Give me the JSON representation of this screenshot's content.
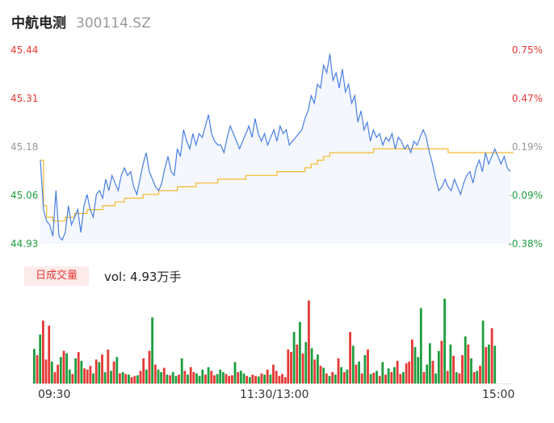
{
  "header": {
    "stock_name": "中航电测",
    "stock_code": "300114.SZ"
  },
  "volume_panel": {
    "tab_label": "日成交量",
    "vol_text": "vol: 4.93万手"
  },
  "colors": {
    "up": "#e53935",
    "down": "#1e9e3e",
    "neutral": "#999999",
    "price_line": "#4a7fe0",
    "price_fill": "#f4f7fd",
    "avg_line": "#f5b82e"
  },
  "chart_data": {
    "type": "line",
    "title": "",
    "xlabel": "",
    "ylabel": "",
    "x_ticks": [
      "09:30",
      "11:30/13:00",
      "15:00"
    ],
    "price_axis": {
      "ylim": [
        44.93,
        45.44
      ],
      "ticks": [
        "45.44",
        "45.31",
        "45.18",
        "45.06",
        "44.93"
      ]
    },
    "pct_axis": {
      "ticks": [
        "0.75%",
        "0.47%",
        "0.19%",
        "-0.09%",
        "-0.38%"
      ]
    },
    "price": [
      45.15,
      45.02,
      44.99,
      44.98,
      44.95,
      45.07,
      44.95,
      44.94,
      44.96,
      45.03,
      44.98,
      45.0,
      45.02,
      44.96,
      45.03,
      45.06,
      45.02,
      45.0,
      45.06,
      45.07,
      45.05,
      45.1,
      45.07,
      45.11,
      45.09,
      45.07,
      45.11,
      45.13,
      45.11,
      45.12,
      45.08,
      45.06,
      45.1,
      45.14,
      45.17,
      45.12,
      45.1,
      45.08,
      45.07,
      45.09,
      45.13,
      45.16,
      45.12,
      45.11,
      45.18,
      45.16,
      45.23,
      45.2,
      45.18,
      45.22,
      45.19,
      45.22,
      45.21,
      45.24,
      45.27,
      45.22,
      45.2,
      45.19,
      45.19,
      45.17,
      45.21,
      45.24,
      45.22,
      45.2,
      45.18,
      45.2,
      45.22,
      45.24,
      45.21,
      45.26,
      45.22,
      45.2,
      45.22,
      45.19,
      45.21,
      45.23,
      45.2,
      45.24,
      45.22,
      45.23,
      45.19,
      45.2,
      45.21,
      45.22,
      45.23,
      45.26,
      45.28,
      45.32,
      45.3,
      45.35,
      45.34,
      45.4,
      45.38,
      45.43,
      45.36,
      45.38,
      45.34,
      45.39,
      45.33,
      45.35,
      45.3,
      45.32,
      45.25,
      45.28,
      45.23,
      45.25,
      45.2,
      45.23,
      45.21,
      45.22,
      45.19,
      45.21,
      45.2,
      45.22,
      45.18,
      45.21,
      45.2,
      45.18,
      45.19,
      45.17,
      45.2,
      45.19,
      45.21,
      45.23,
      45.21,
      45.17,
      45.14,
      45.1,
      45.07,
      45.08,
      45.1,
      45.08,
      45.07,
      45.1,
      45.08,
      45.06,
      45.09,
      45.11,
      45.12,
      45.09,
      45.13,
      45.15,
      45.12,
      45.17,
      45.14,
      45.16,
      45.18,
      45.16,
      45.14,
      45.16,
      45.13,
      45.12
    ],
    "avg_price": [
      45.15,
      45.03,
      45.0,
      45.0,
      44.99,
      44.99,
      44.99,
      44.99,
      45.0,
      45.0,
      45.0,
      45.01,
      45.01,
      45.01,
      45.01,
      45.02,
      45.02,
      45.02,
      45.02,
      45.02,
      45.03,
      45.03,
      45.03,
      45.03,
      45.04,
      45.04,
      45.04,
      45.05,
      45.05,
      45.05,
      45.05,
      45.05,
      45.05,
      45.06,
      45.06,
      45.06,
      45.06,
      45.06,
      45.07,
      45.07,
      45.07,
      45.07,
      45.07,
      45.07,
      45.08,
      45.08,
      45.08,
      45.08,
      45.08,
      45.08,
      45.09,
      45.09,
      45.09,
      45.09,
      45.09,
      45.09,
      45.09,
      45.1,
      45.1,
      45.1,
      45.1,
      45.1,
      45.1,
      45.1,
      45.1,
      45.1,
      45.11,
      45.11,
      45.11,
      45.11,
      45.11,
      45.11,
      45.11,
      45.11,
      45.11,
      45.11,
      45.12,
      45.12,
      45.12,
      45.12,
      45.12,
      45.12,
      45.12,
      45.12,
      45.12,
      45.13,
      45.13,
      45.14,
      45.14,
      45.15,
      45.15,
      45.16,
      45.16,
      45.17,
      45.17,
      45.17,
      45.17,
      45.17,
      45.17,
      45.17,
      45.17,
      45.17,
      45.17,
      45.17,
      45.17,
      45.17,
      45.17,
      45.18,
      45.18,
      45.18,
      45.18,
      45.18,
      45.18,
      45.18,
      45.18,
      45.18,
      45.18,
      45.18,
      45.18,
      45.18,
      45.18,
      45.18,
      45.18,
      45.18,
      45.18,
      45.18,
      45.18,
      45.18,
      45.18,
      45.18,
      45.18,
      45.17,
      45.17,
      45.17,
      45.17,
      45.17,
      45.17,
      45.17,
      45.17,
      45.17,
      45.17,
      45.17,
      45.17,
      45.17,
      45.17,
      45.17,
      45.17,
      45.17,
      45.17,
      45.17,
      45.17,
      45.17,
      45.17
    ],
    "volume": [
      55,
      45,
      78,
      100,
      38,
      92,
      35,
      18,
      30,
      42,
      52,
      48,
      22,
      15,
      40,
      50,
      36,
      24,
      22,
      28,
      16,
      38,
      34,
      46,
      18,
      54,
      20,
      35,
      42,
      16,
      18,
      15,
      14,
      10,
      12,
      13,
      20,
      40,
      22,
      52,
      105,
      30,
      22,
      18,
      25,
      14,
      13,
      18,
      12,
      14,
      40,
      20,
      14,
      26,
      18,
      16,
      12,
      22,
      14,
      26,
      20,
      13,
      15,
      22,
      18,
      15,
      12,
      13,
      34,
      18,
      20,
      16,
      12,
      10,
      14,
      12,
      11,
      16,
      14,
      22,
      14,
      30,
      20,
      12,
      15,
      10,
      54,
      50,
      82,
      62,
      98,
      48,
      66,
      132,
      56,
      38,
      46,
      28,
      25,
      16,
      12,
      18,
      14,
      40,
      26,
      18,
      22,
      82,
      60,
      30,
      35,
      16,
      45,
      54,
      15,
      17,
      20,
      12,
      34,
      14,
      24,
      18,
      26,
      36,
      15,
      18,
      32,
      35,
      70,
      58,
      42,
      120,
      18,
      30,
      64,
      36,
      16,
      52,
      68,
      135,
      20,
      62,
      44,
      18,
      16,
      45,
      75,
      62,
      40,
      18,
      20,
      28,
      100,
      58,
      62,
      88,
      60
    ],
    "volume_up": [
      false,
      true,
      false,
      true,
      true,
      true,
      false,
      true,
      true,
      false,
      true,
      false,
      false,
      true,
      false,
      true,
      false,
      true,
      true,
      true,
      false,
      true,
      false,
      true,
      false,
      true,
      false,
      true,
      false,
      true,
      false,
      true,
      false,
      true,
      true,
      false,
      true,
      true,
      false,
      true,
      false,
      true,
      false,
      false,
      true,
      false,
      true,
      false,
      false,
      true,
      false,
      true,
      false,
      true,
      true,
      false,
      false,
      false,
      true,
      false,
      true,
      true,
      false,
      false,
      false,
      true,
      true,
      true,
      false,
      true,
      false,
      false,
      true,
      false,
      true,
      true,
      false,
      true,
      false,
      true,
      false,
      true,
      true,
      true,
      true,
      true,
      true,
      true,
      false,
      true,
      false,
      true,
      false,
      true,
      false,
      true,
      false,
      true,
      false,
      true,
      false,
      true,
      false,
      true,
      false,
      true,
      false,
      true,
      false,
      true,
      false,
      true,
      false,
      true,
      false,
      true,
      false,
      true,
      false,
      true,
      false,
      true,
      false,
      true,
      true,
      false,
      true,
      true,
      true,
      false,
      false,
      false,
      true,
      false,
      false,
      true,
      false,
      false,
      true,
      false,
      true,
      false,
      true,
      false,
      true,
      true,
      false,
      true,
      false,
      true,
      false,
      true,
      false,
      true,
      false,
      true,
      false,
      true
    ]
  }
}
